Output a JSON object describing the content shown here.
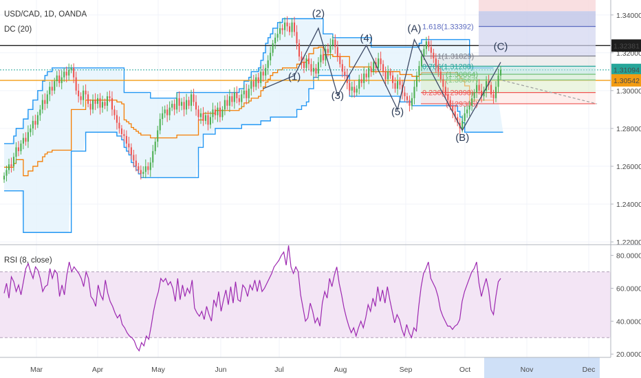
{
  "legend": {
    "symbol": "USD/CAD, 1D, OANDA",
    "indicator": "DC (20)",
    "rsi": "RSI (8, close)"
  },
  "x_axis": {
    "months": [
      "Mar",
      "Apr",
      "May",
      "Jun",
      "Jul",
      "Aug",
      "Sep",
      "Oct",
      "Nov",
      "Dec"
    ]
  },
  "price_badges": [
    {
      "value": 1.32381,
      "label": "1.32381",
      "bg": "#1e1e1e",
      "fg": "#ffffff"
    },
    {
      "value": 1.31094,
      "label": "1.31094",
      "bg": "#26a69a",
      "fg": "#ffffff"
    },
    {
      "value": 1.30542,
      "label": "1.30542",
      "bg": "#f39c12",
      "fg": "#ffffff"
    }
  ],
  "colors": {
    "bull": "#4caf50",
    "bear": "#ef5350",
    "channel": "#2196f3",
    "channel_fill": "#e3f2fd",
    "middle": "#f57c00",
    "rsi_line": "#9c27b0",
    "rsi_band": "#f3e5f5",
    "wave": "#3d4a66"
  },
  "chart_data": [
    {
      "type": "candlestick",
      "title": "USD/CAD, 1D, OANDA",
      "ylim": [
        1.22,
        1.345
      ],
      "yticks": [
        1.22,
        1.24,
        1.26,
        1.28,
        1.3,
        1.32,
        1.34
      ],
      "ytick_labels": [
        "1.22000",
        "1.24000",
        "1.26000",
        "1.28000",
        "1.30000",
        "1.32000",
        "1.34000"
      ],
      "closes": [
        1.255,
        1.258,
        1.261,
        1.26,
        1.265,
        1.27,
        1.268,
        1.272,
        1.275,
        1.273,
        1.278,
        1.28,
        1.284,
        1.282,
        1.287,
        1.29,
        1.295,
        1.293,
        1.298,
        1.302,
        1.3,
        1.305,
        1.308,
        1.304,
        1.307,
        1.31,
        1.308,
        1.311,
        1.312,
        1.307,
        1.3,
        1.297,
        1.295,
        1.3,
        1.298,
        1.293,
        1.29,
        1.295,
        1.293,
        1.296,
        1.291,
        1.294,
        1.292,
        1.297,
        1.296,
        1.29,
        1.287,
        1.283,
        1.28,
        1.277,
        1.276,
        1.272,
        1.27,
        1.266,
        1.263,
        1.26,
        1.258,
        1.256,
        1.257,
        1.26,
        1.258,
        1.262,
        1.268,
        1.273,
        1.279,
        1.285,
        1.288,
        1.29,
        1.287,
        1.291,
        1.293,
        1.29,
        1.296,
        1.292,
        1.294,
        1.29,
        1.295,
        1.292,
        1.298,
        1.294,
        1.29,
        1.286,
        1.288,
        1.284,
        1.287,
        1.282,
        1.286,
        1.29,
        1.287,
        1.291,
        1.286,
        1.29,
        1.295,
        1.292,
        1.297,
        1.294,
        1.299,
        1.296,
        1.294,
        1.298,
        1.3,
        1.296,
        1.301,
        1.305,
        1.302,
        1.307,
        1.304,
        1.31,
        1.308,
        1.312,
        1.316,
        1.32,
        1.325,
        1.328,
        1.33,
        1.333,
        1.332,
        1.336,
        1.334,
        1.331,
        1.336,
        1.331,
        1.325,
        1.318,
        1.315,
        1.312,
        1.317,
        1.314,
        1.31,
        1.312,
        1.309,
        1.315,
        1.319,
        1.316,
        1.322,
        1.32,
        1.324,
        1.327,
        1.323,
        1.318,
        1.314,
        1.31,
        1.308,
        1.304,
        1.3,
        1.302,
        1.299,
        1.301,
        1.306,
        1.304,
        1.309,
        1.307,
        1.312,
        1.31,
        1.315,
        1.312,
        1.317,
        1.314,
        1.31,
        1.306,
        1.31,
        1.308,
        1.304,
        1.301,
        1.305,
        1.303,
        1.299,
        1.297,
        1.295,
        1.292,
        1.296,
        1.302,
        1.308,
        1.313,
        1.318,
        1.322,
        1.326,
        1.323,
        1.32,
        1.317,
        1.313,
        1.31,
        1.306,
        1.302,
        1.298,
        1.295,
        1.292,
        1.289,
        1.286,
        1.283,
        1.28,
        1.284,
        1.288,
        1.29,
        1.292,
        1.296,
        1.299,
        1.303,
        1.3,
        1.297,
        1.3,
        1.305,
        1.303,
        1.298,
        1.296,
        1.302,
        1.308,
        1.311
      ],
      "donchian_upper": [
        1.272,
        1.272,
        1.272,
        1.272,
        1.276,
        1.28,
        1.28,
        1.28,
        1.285,
        1.285,
        1.29,
        1.29,
        1.295,
        1.295,
        1.3,
        1.3,
        1.305,
        1.308,
        1.31,
        1.31,
        1.312,
        1.312,
        1.312,
        1.312,
        1.312,
        1.312,
        1.312,
        1.312,
        1.312,
        1.312,
        1.312,
        1.312,
        1.312,
        1.312,
        1.312,
        1.312,
        1.312,
        1.312,
        1.312,
        1.312,
        1.312,
        1.312,
        1.312,
        1.312,
        1.312,
        1.312,
        1.312,
        1.312,
        1.312,
        1.312,
        1.299,
        1.299,
        1.299,
        1.299,
        1.299,
        1.299,
        1.299,
        1.299,
        1.299,
        1.299,
        1.299,
        1.296,
        1.296,
        1.296,
        1.296,
        1.296,
        1.296,
        1.296,
        1.296,
        1.296,
        1.296,
        1.296,
        1.299,
        1.299,
        1.299,
        1.299,
        1.299,
        1.299,
        1.299,
        1.299,
        1.299,
        1.299,
        1.299,
        1.299,
        1.299,
        1.299,
        1.299,
        1.299,
        1.299,
        1.299,
        1.299,
        1.299,
        1.299,
        1.299,
        1.299,
        1.299,
        1.299,
        1.299,
        1.301,
        1.301,
        1.305,
        1.305,
        1.307,
        1.31,
        1.31,
        1.31,
        1.312,
        1.316,
        1.32,
        1.325,
        1.328,
        1.33,
        1.333,
        1.333,
        1.336,
        1.336,
        1.338,
        1.338,
        1.338,
        1.338,
        1.338,
        1.338,
        1.338,
        1.338,
        1.338,
        1.338,
        1.338,
        1.338,
        1.338,
        1.338,
        1.338,
        1.338,
        1.338,
        1.33,
        1.33,
        1.33,
        1.33,
        1.328,
        1.328,
        1.328,
        1.328,
        1.328,
        1.328,
        1.328,
        1.328,
        1.328,
        1.328,
        1.328,
        1.328,
        1.328,
        1.328,
        1.328,
        1.328,
        1.323,
        1.323,
        1.323,
        1.323,
        1.323,
        1.323,
        1.323,
        1.323,
        1.323,
        1.323,
        1.323,
        1.323,
        1.323,
        1.323,
        1.323,
        1.323,
        1.323,
        1.323,
        1.323,
        1.323,
        1.325,
        1.327,
        1.327,
        1.327,
        1.327,
        1.327,
        1.327,
        1.327,
        1.327,
        1.327,
        1.327,
        1.327,
        1.327,
        1.327,
        1.327,
        1.327,
        1.327,
        1.327,
        1.327,
        1.327,
        1.327,
        1.312,
        1.312,
        1.312,
        1.312,
        1.312,
        1.312,
        1.312,
        1.312,
        1.312,
        1.312,
        1.312
      ],
      "donchian_lower": [
        1.247,
        1.247,
        1.247,
        1.247,
        1.247,
        1.247,
        1.247,
        1.247,
        1.225,
        1.225,
        1.225,
        1.225,
        1.225,
        1.225,
        1.225,
        1.225,
        1.225,
        1.225,
        1.225,
        1.225,
        1.225,
        1.225,
        1.225,
        1.225,
        1.225,
        1.225,
        1.225,
        1.225,
        1.268,
        1.268,
        1.268,
        1.268,
        1.268,
        1.268,
        1.278,
        1.278,
        1.278,
        1.278,
        1.278,
        1.278,
        1.278,
        1.278,
        1.278,
        1.278,
        1.278,
        1.278,
        1.278,
        1.276,
        1.276,
        1.274,
        1.27,
        1.268,
        1.266,
        1.262,
        1.26,
        1.258,
        1.256,
        1.254,
        1.254,
        1.254,
        1.254,
        1.254,
        1.254,
        1.254,
        1.254,
        1.254,
        1.254,
        1.254,
        1.254,
        1.254,
        1.254,
        1.254,
        1.254,
        1.254,
        1.254,
        1.254,
        1.254,
        1.254,
        1.254,
        1.254,
        1.254,
        1.27,
        1.27,
        1.277,
        1.277,
        1.277,
        1.277,
        1.277,
        1.28,
        1.28,
        1.28,
        1.28,
        1.28,
        1.28,
        1.28,
        1.28,
        1.28,
        1.28,
        1.28,
        1.282,
        1.282,
        1.282,
        1.282,
        1.282,
        1.282,
        1.282,
        1.282,
        1.284,
        1.284,
        1.284,
        1.284,
        1.286,
        1.286,
        1.286,
        1.286,
        1.286,
        1.286,
        1.286,
        1.286,
        1.286,
        1.286,
        1.286,
        1.29,
        1.29,
        1.292,
        1.292,
        1.294,
        1.301,
        1.301,
        1.307,
        1.307,
        1.308,
        1.308,
        1.308,
        1.308,
        1.308,
        1.308,
        1.308,
        1.308,
        1.308,
        1.308,
        1.308,
        1.308,
        1.308,
        1.297,
        1.297,
        1.297,
        1.297,
        1.297,
        1.297,
        1.297,
        1.297,
        1.297,
        1.297,
        1.297,
        1.297,
        1.297,
        1.297,
        1.297,
        1.297,
        1.297,
        1.297,
        1.297,
        1.297,
        1.297,
        1.294,
        1.294,
        1.294,
        1.294,
        1.294,
        1.292,
        1.292,
        1.292,
        1.292,
        1.292,
        1.292,
        1.292,
        1.292,
        1.292,
        1.292,
        1.292,
        1.292,
        1.292,
        1.292,
        1.292,
        1.292,
        1.292,
        1.292,
        1.292,
        1.289,
        1.286,
        1.283,
        1.278,
        1.278,
        1.278,
        1.278,
        1.278,
        1.278,
        1.278,
        1.278,
        1.278,
        1.278,
        1.278,
        1.278,
        1.278,
        1.278,
        1.278,
        1.278,
        1.278
      ],
      "horizontal_levels": [
        1.32381,
        1.31094,
        1.30542
      ],
      "wave_labels": [
        {
          "text": "(1)",
          "index": 121,
          "price": 1.3055
        },
        {
          "text": "(2)",
          "index": 131,
          "price": 1.339
        },
        {
          "text": "(3)",
          "index": 139,
          "price": 1.2955
        },
        {
          "text": "(4)",
          "index": 151,
          "price": 1.326
        },
        {
          "text": "(5)",
          "index": 164,
          "price": 1.287
        },
        {
          "text": "(A)",
          "index": 171,
          "price": 1.331
        },
        {
          "text": "(B)",
          "index": 191,
          "price": 1.2735
        },
        {
          "text": "(C)",
          "index": 207,
          "price": 1.3215
        }
      ],
      "fib_levels": [
        {
          "ratio": "1.618",
          "value": 1.33392,
          "label": "1.618(1.33392)",
          "color": "#5c6bc0"
        },
        {
          "ratio": "1",
          "value": 1.31829,
          "label": "1(1.31829)",
          "color": "#787b86"
        },
        {
          "ratio": "0.786",
          "value": 1.31288,
          "label": "0.786(1.31288)",
          "color": "#26a69a"
        },
        {
          "ratio": "0.618",
          "value": 1.30864,
          "label": "(1.30864)",
          "color": "#66bb6a"
        },
        {
          "ratio": "0.5",
          "value": 1.30567,
          "label": "(1.30567)",
          "color": "#81c784"
        },
        {
          "ratio": "0.236",
          "value": 1.29898,
          "label": "0.236(1.29898)",
          "color": "#ef5350"
        },
        {
          "ratio": "0",
          "value": 1.29306,
          "label": "(1.29306)",
          "color": "#ef5350"
        }
      ]
    },
    {
      "type": "line",
      "title": "RSI (8, close)",
      "ylim": [
        18,
        84
      ],
      "yticks": [
        20,
        40,
        60,
        80
      ],
      "ytick_labels": [
        "20.0000",
        "40.0000",
        "60.0000",
        "80.0000"
      ],
      "band": [
        30,
        70
      ],
      "values": [
        57,
        63,
        54,
        67,
        64,
        58,
        62,
        56,
        64,
        72,
        75,
        70,
        66,
        73,
        71,
        66,
        58,
        61,
        62,
        72,
        66,
        71,
        69,
        55,
        62,
        56,
        68,
        76,
        70,
        73,
        71,
        69,
        66,
        61,
        70,
        66,
        55,
        53,
        49,
        62,
        56,
        53,
        65,
        57,
        52,
        49,
        45,
        42,
        44,
        38,
        36,
        33,
        31,
        30,
        28,
        24,
        22,
        27,
        25,
        31,
        29,
        37,
        46,
        53,
        58,
        66,
        64,
        66,
        62,
        64,
        60,
        52,
        66,
        53,
        62,
        55,
        60,
        57,
        65,
        48,
        45,
        43,
        46,
        41,
        49,
        44,
        40,
        53,
        49,
        58,
        46,
        53,
        59,
        50,
        61,
        51,
        64,
        53,
        52,
        62,
        60,
        55,
        62,
        59,
        65,
        58,
        65,
        58,
        60,
        63,
        66,
        69,
        73,
        75,
        77,
        80,
        82,
        74,
        86,
        73,
        69,
        73,
        70,
        56,
        48,
        40,
        42,
        51,
        46,
        39,
        42,
        37,
        51,
        58,
        54,
        66,
        61,
        68,
        73,
        63,
        56,
        48,
        42,
        37,
        33,
        36,
        31,
        36,
        40,
        36,
        42,
        50,
        46,
        54,
        49,
        61,
        52,
        59,
        51,
        61,
        53,
        46,
        39,
        44,
        41,
        35,
        31,
        38,
        33,
        30,
        36,
        34,
        49,
        61,
        69,
        72,
        76,
        66,
        63,
        60,
        55,
        47,
        43,
        40,
        37,
        37,
        35,
        37,
        38,
        41,
        52,
        58,
        62,
        66,
        70,
        72,
        76,
        63,
        55,
        61,
        66,
        59,
        47,
        44,
        55,
        64,
        66
      ]
    }
  ]
}
